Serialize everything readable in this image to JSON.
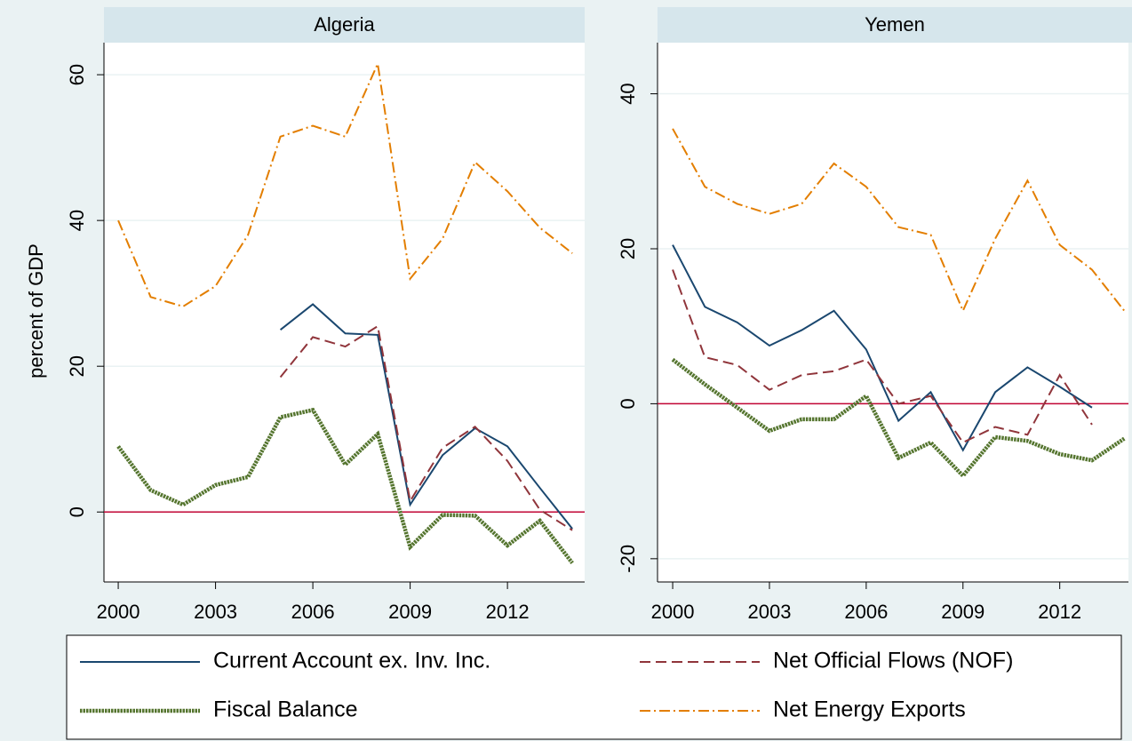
{
  "chart_data": [
    {
      "type": "line",
      "title": "Algeria",
      "y_label": "percent of GDP",
      "x": [
        2000,
        2001,
        2002,
        2003,
        2004,
        2005,
        2006,
        2007,
        2008,
        2009,
        2010,
        2011,
        2012,
        2013,
        2014
      ],
      "xlim": [
        1999.56,
        2014.38
      ],
      "xticks": [
        2000,
        2003,
        2006,
        2009,
        2012
      ],
      "ylim": [
        -9.6,
        64.4
      ],
      "yticks": [
        0,
        20,
        40,
        60
      ],
      "reference_line": 0,
      "grid": true,
      "series": [
        {
          "name": "Current Account ex. Inv. Inc.",
          "color": "#1a476f",
          "values": [
            null,
            null,
            null,
            null,
            null,
            25,
            28.5,
            24.5,
            24.3,
            1,
            7.8,
            11.5,
            9,
            3.3,
            -2.3
          ]
        },
        {
          "name": "Net Official Flows (NOF)",
          "color": "#90353b",
          "values": [
            null,
            null,
            null,
            null,
            null,
            18.5,
            24,
            22.7,
            25.5,
            1.5,
            8.8,
            11.7,
            7,
            0.3,
            -2.5
          ]
        },
        {
          "name": "Fiscal Balance",
          "color": "#55752f",
          "values": [
            9,
            3,
            1,
            3.7,
            4.8,
            13,
            14,
            6.5,
            10.7,
            -4.8,
            -0.4,
            -0.5,
            -4.6,
            -1.2,
            -7
          ]
        },
        {
          "name": "Net Energy Exports",
          "color": "#e37e00",
          "values": [
            40,
            29.5,
            28.2,
            31,
            38,
            51.5,
            53,
            51.5,
            61.5,
            32,
            37.5,
            48,
            44,
            39,
            35.5
          ]
        }
      ]
    },
    {
      "type": "line",
      "title": "Yemen",
      "x": [
        2000,
        2001,
        2002,
        2003,
        2004,
        2005,
        2006,
        2007,
        2008,
        2009,
        2010,
        2011,
        2012,
        2013,
        2014
      ],
      "xlim": [
        1999.53,
        2014.13
      ],
      "xticks": [
        2000,
        2003,
        2006,
        2009,
        2012
      ],
      "ylim": [
        -23,
        46.6
      ],
      "yticks": [
        -20,
        0,
        20,
        40
      ],
      "reference_line": 0,
      "grid": true,
      "series": [
        {
          "name": "Current Account ex. Inv. Inc.",
          "color": "#1a476f",
          "values": [
            20.5,
            12.5,
            10.5,
            7.5,
            9.5,
            12,
            7,
            -2.2,
            1.5,
            -6,
            1.5,
            4.7,
            2.2,
            -0.5,
            null
          ]
        },
        {
          "name": "Net Official Flows (NOF)",
          "color": "#90353b",
          "values": [
            17.3,
            6,
            5,
            1.8,
            3.7,
            4.2,
            5.7,
            0,
            1,
            -5,
            -3,
            -4,
            3.7,
            -2.7,
            null
          ]
        },
        {
          "name": "Fiscal Balance",
          "color": "#55752f",
          "values": [
            5.7,
            2.5,
            -0.5,
            -3.5,
            -2,
            -2,
            1,
            -7,
            -5,
            -9.3,
            -4.3,
            -4.8,
            -6.5,
            -7.3,
            -4.5
          ]
        },
        {
          "name": "Net Energy Exports",
          "color": "#e37e00",
          "values": [
            35.5,
            28,
            25.8,
            24.5,
            25.8,
            31,
            28,
            22.8,
            21.8,
            12,
            21.3,
            28.8,
            20.5,
            17.3,
            12
          ]
        }
      ]
    }
  ]
}
